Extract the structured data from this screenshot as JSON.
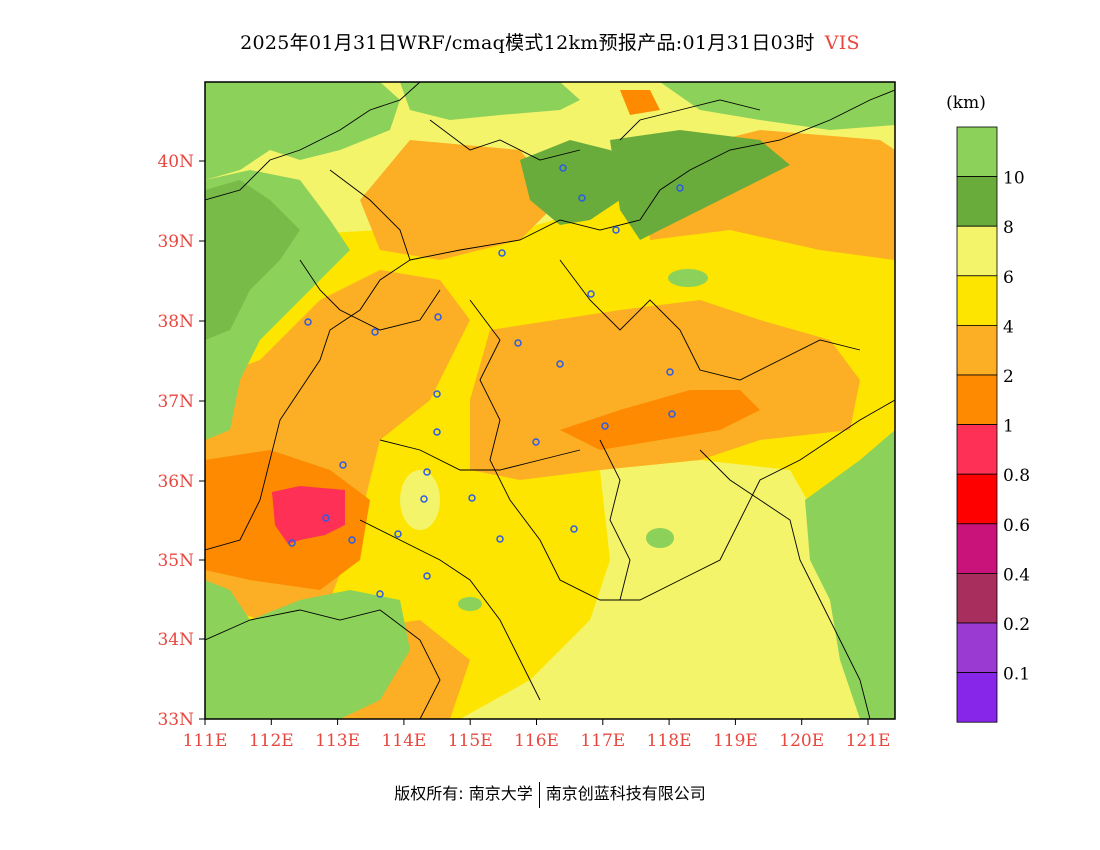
{
  "title": {
    "main": "2025年01月31日WRF/cmaq模式12km预报产品:01月31日03时",
    "variable": "VIS"
  },
  "axes": {
    "lat_labels": [
      "40N",
      "39N",
      "38N",
      "37N",
      "36N",
      "35N",
      "34N",
      "33N"
    ],
    "lon_labels": [
      "111E",
      "112E",
      "113E",
      "114E",
      "115E",
      "116E",
      "117E",
      "118E",
      "119E",
      "120E",
      "121E"
    ],
    "label_color": "#e8473f"
  },
  "colorbar": {
    "unit": "(km)",
    "labels": [
      "10",
      "8",
      "6",
      "4",
      "2",
      "1",
      "0.8",
      "0.6",
      "0.4",
      "0.2",
      "0.1"
    ],
    "colors": [
      "#8cd15a",
      "#6aac3c",
      "#f3f46a",
      "#fde500",
      "#fcae24",
      "#fd8a00",
      "#ff3055",
      "#fe0000",
      "#c9127a",
      "#a82e5e",
      "#9a3ad2",
      "#8726e8"
    ]
  },
  "footer": {
    "left": "版权所有: 南京大学",
    "right": "南京创蓝科技有限公司"
  }
}
